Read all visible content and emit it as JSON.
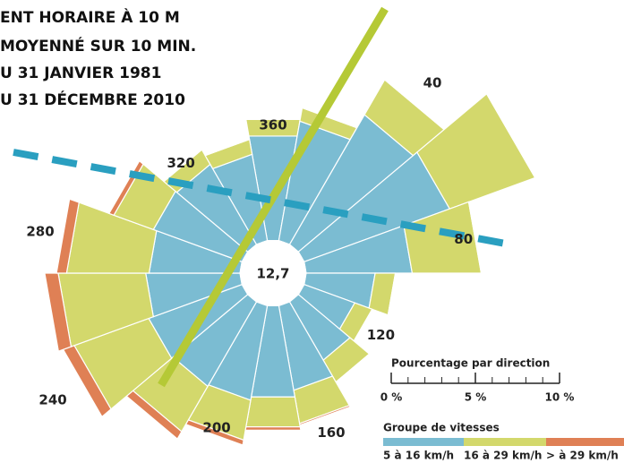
{
  "chart_data": {
    "type": "wind_rose",
    "title_lines": [
      "ENT HORAIRE À 10 M",
      "MOYENNÉ SUR 10 MIN.",
      "U 31 JANVIER 1981",
      "U 31 DÉCEMBRE 2010"
    ],
    "directions": [
      0,
      20,
      40,
      60,
      80,
      100,
      120,
      140,
      160,
      180,
      200,
      220,
      240,
      260,
      280,
      300,
      320,
      340
    ],
    "direction_labels": [
      360,
      40,
      80,
      120,
      160,
      200,
      240,
      280,
      320
    ],
    "calm": {
      "value": 12.7,
      "label": "12,7"
    },
    "legend_title": "Groupe de vitesses",
    "scale_title": "Pourcentage par direction",
    "scale_ticks": [
      {
        "value": 0,
        "label": "0 %"
      },
      {
        "value": 5,
        "label": "5 %"
      },
      {
        "value": 10,
        "label": "10 %"
      }
    ],
    "scale_minor_ticks": [
      1,
      2,
      3,
      4,
      6,
      7,
      8,
      9
    ],
    "series": [
      {
        "name": "5 à 16 km/h",
        "color": "#7bbcd2",
        "values": [
          6.3,
          7.2,
          8.9,
          9.2,
          6.3,
          4.1,
          3.2,
          4.0,
          5.1,
          5.5,
          5.7,
          5.8,
          5.9,
          5.6,
          5.4,
          5.6,
          5.5,
          5.2
        ]
      },
      {
        "name": "16 à 29 km/h",
        "color": "#d3d86c",
        "values": [
          1.0,
          0.8,
          2.4,
          5.4,
          4.1,
          1.2,
          1.1,
          1.5,
          2.0,
          1.8,
          2.4,
          3.1,
          4.7,
          5.2,
          4.9,
          2.5,
          1.0,
          0.9
        ]
      },
      {
        "name": "> à 29 km/h",
        "color": "#df8055",
        "values": [
          0,
          0,
          0,
          0,
          0,
          0,
          0,
          0,
          0.1,
          0.2,
          0.3,
          0.5,
          0.7,
          0.8,
          0.6,
          0.3,
          0,
          0
        ]
      }
    ]
  }
}
